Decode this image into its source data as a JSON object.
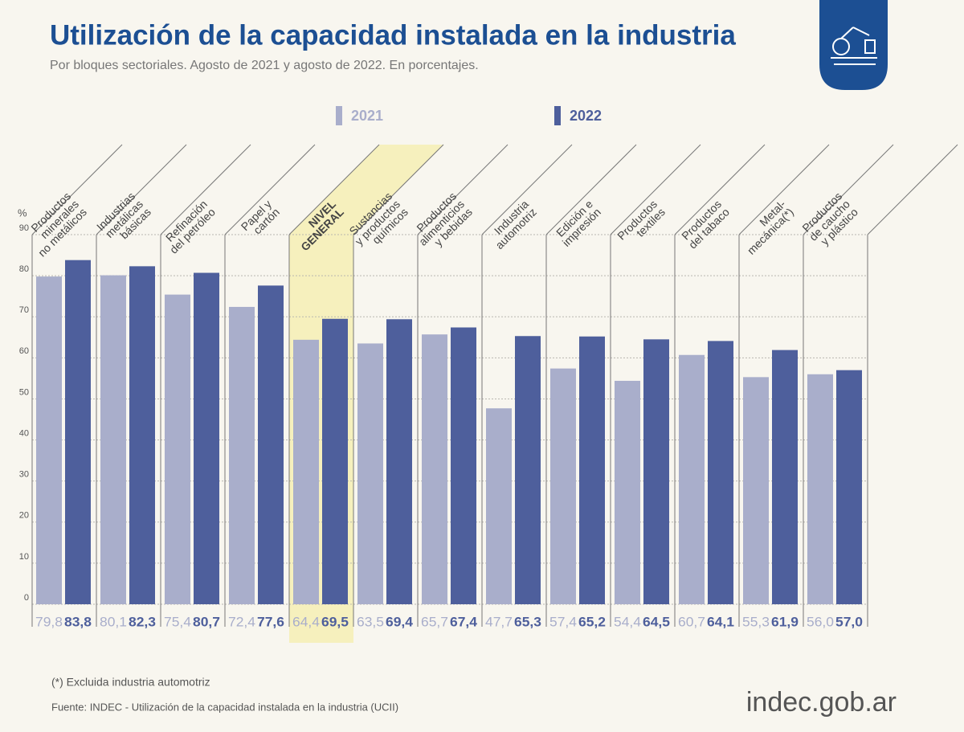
{
  "chart_data": {
    "type": "bar",
    "title": "Utilización de la capacidad instalada en la industria",
    "subtitle": "Por bloques sectoriales. Agosto de 2021 y agosto de 2022. En porcentajes.",
    "y_label": "%",
    "categories": [
      [
        "Productos",
        "minerales",
        "no metálicos"
      ],
      [
        "Industrias",
        "metálicas",
        "básicas"
      ],
      [
        "Refinación",
        "del petróleo"
      ],
      [
        "Papel y",
        "cartón"
      ],
      [
        "NIVEL",
        "GENERAL"
      ],
      [
        "Sustancias",
        "y productos",
        "químicos"
      ],
      [
        "Productos",
        "alimenticios",
        "y bebidas"
      ],
      [
        "Industria",
        "automotriz"
      ],
      [
        "Edición e",
        "impresión"
      ],
      [
        "Productos",
        "textiles"
      ],
      [
        "Productos",
        "del tabaco"
      ],
      [
        "Metal-",
        "mecánica(*)"
      ],
      [
        "Productos",
        "de caucho",
        "y plástico"
      ]
    ],
    "series": [
      {
        "name": "2021",
        "color": "#a9aecb",
        "values": [
          79.8,
          80.1,
          75.4,
          72.4,
          64.4,
          63.5,
          65.7,
          47.7,
          57.4,
          54.4,
          60.7,
          55.3,
          56.0
        ],
        "value_labels": [
          "79,8",
          "80,1",
          "75,4",
          "72,4",
          "64,4",
          "63,5",
          "65,7",
          "47,7",
          "57,4",
          "54,4",
          "60,7",
          "55,3",
          "56,0"
        ]
      },
      {
        "name": "2022",
        "color": "#4e5f9c",
        "values": [
          83.8,
          82.3,
          80.7,
          77.6,
          69.5,
          69.4,
          67.4,
          65.3,
          65.2,
          64.5,
          64.1,
          61.9,
          57.0
        ],
        "value_labels": [
          "83,8",
          "82,3",
          "80,7",
          "77,6",
          "69,5",
          "69,4",
          "67,4",
          "65,3",
          "65,2",
          "64,5",
          "64,1",
          "61,9",
          "57,0"
        ]
      }
    ],
    "ylim": [
      0,
      90
    ],
    "yticks": [
      0,
      10,
      20,
      30,
      40,
      50,
      60,
      70,
      80,
      90
    ],
    "grid": true,
    "footnote": "(*) Excluida industria automotriz",
    "source": "Fuente: INDEC - Utilización de la capacidad instalada en la industria (UCII)",
    "logo_text": "indec.gob.ar"
  }
}
